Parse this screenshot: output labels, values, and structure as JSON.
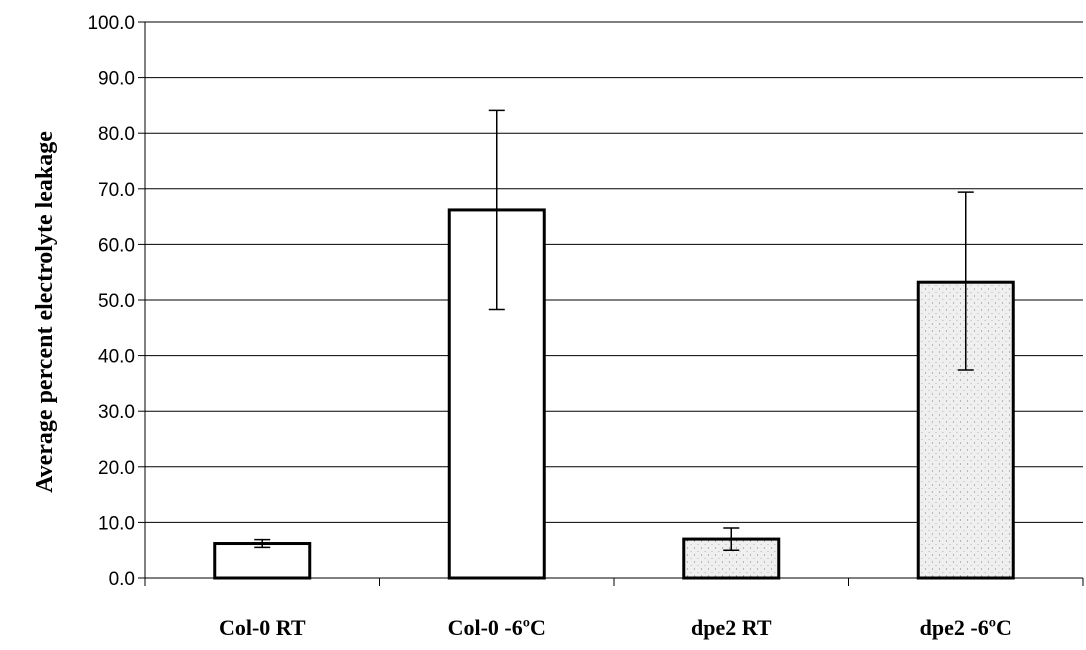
{
  "chart_data": {
    "type": "bar",
    "title": "",
    "xlabel": "",
    "ylabel": "Average percent electrolyte leakage",
    "ylim": [
      0,
      100
    ],
    "yticks": [
      "0.0",
      "10.0",
      "20.0",
      "30.0",
      "40.0",
      "50.0",
      "60.0",
      "70.0",
      "80.0",
      "90.0",
      "100.0"
    ],
    "grid": true,
    "legend": "none",
    "categories": [
      "Col-0 RT",
      "Col-0 -6ºC",
      "dpe2 RT",
      "dpe2 -6ºC"
    ],
    "values": [
      6.2,
      66.2,
      7.0,
      53.2
    ],
    "error_low": [
      5.5,
      48.3,
      5.0,
      37.4
    ],
    "error_high": [
      6.9,
      84.1,
      9.0,
      69.4
    ],
    "fills": [
      "plain",
      "plain",
      "stippled",
      "stippled"
    ],
    "colors": {
      "bar_plain": "#ffffff",
      "bar_stippled": "#ebebeb",
      "bar_outline": "#000000",
      "grid": "#000000"
    }
  }
}
